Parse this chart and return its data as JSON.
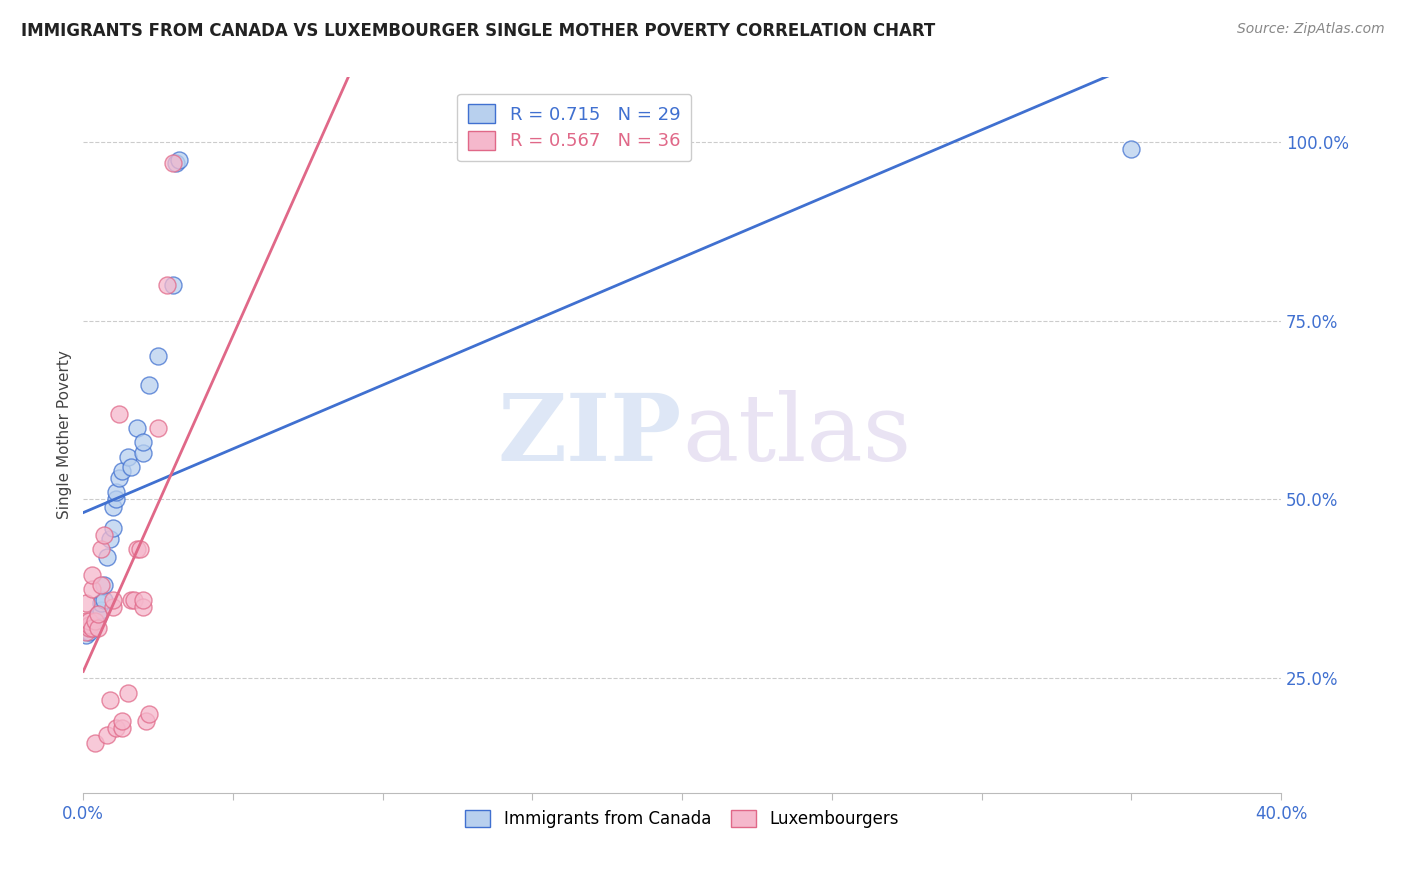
{
  "title": "IMMIGRANTS FROM CANADA VS LUXEMBOURGER SINGLE MOTHER POVERTY CORRELATION CHART",
  "source": "Source: ZipAtlas.com",
  "ylabel": "Single Mother Poverty",
  "legend_blue": "R = 0.715   N = 29",
  "legend_pink": "R = 0.567   N = 36",
  "watermark_zip": "ZIP",
  "watermark_atlas": "atlas",
  "blue_color": "#b8d0ee",
  "pink_color": "#f5b8cc",
  "blue_line_color": "#4070d0",
  "pink_line_color": "#e06888",
  "blue_scatter": [
    [
      0.001,
      0.31
    ],
    [
      0.002,
      0.315
    ],
    [
      0.003,
      0.32
    ],
    [
      0.004,
      0.33
    ],
    [
      0.005,
      0.335
    ],
    [
      0.005,
      0.34
    ],
    [
      0.006,
      0.345
    ],
    [
      0.006,
      0.355
    ],
    [
      0.007,
      0.36
    ],
    [
      0.007,
      0.38
    ],
    [
      0.008,
      0.42
    ],
    [
      0.009,
      0.445
    ],
    [
      0.01,
      0.46
    ],
    [
      0.01,
      0.49
    ],
    [
      0.011,
      0.5
    ],
    [
      0.011,
      0.51
    ],
    [
      0.012,
      0.53
    ],
    [
      0.013,
      0.54
    ],
    [
      0.015,
      0.56
    ],
    [
      0.016,
      0.545
    ],
    [
      0.018,
      0.6
    ],
    [
      0.02,
      0.565
    ],
    [
      0.02,
      0.58
    ],
    [
      0.022,
      0.66
    ],
    [
      0.025,
      0.7
    ],
    [
      0.03,
      0.8
    ],
    [
      0.031,
      0.97
    ],
    [
      0.032,
      0.975
    ],
    [
      0.35,
      0.99
    ]
  ],
  "pink_scatter": [
    [
      0.001,
      0.315
    ],
    [
      0.001,
      0.33
    ],
    [
      0.001,
      0.355
    ],
    [
      0.002,
      0.32
    ],
    [
      0.002,
      0.325
    ],
    [
      0.002,
      0.33
    ],
    [
      0.003,
      0.32
    ],
    [
      0.003,
      0.375
    ],
    [
      0.003,
      0.395
    ],
    [
      0.004,
      0.16
    ],
    [
      0.004,
      0.33
    ],
    [
      0.005,
      0.32
    ],
    [
      0.005,
      0.34
    ],
    [
      0.006,
      0.38
    ],
    [
      0.006,
      0.43
    ],
    [
      0.007,
      0.45
    ],
    [
      0.008,
      0.17
    ],
    [
      0.009,
      0.22
    ],
    [
      0.01,
      0.35
    ],
    [
      0.01,
      0.36
    ],
    [
      0.011,
      0.18
    ],
    [
      0.012,
      0.62
    ],
    [
      0.013,
      0.18
    ],
    [
      0.013,
      0.19
    ],
    [
      0.015,
      0.23
    ],
    [
      0.016,
      0.36
    ],
    [
      0.017,
      0.36
    ],
    [
      0.018,
      0.43
    ],
    [
      0.019,
      0.43
    ],
    [
      0.02,
      0.35
    ],
    [
      0.02,
      0.36
    ],
    [
      0.021,
      0.19
    ],
    [
      0.022,
      0.2
    ],
    [
      0.025,
      0.6
    ],
    [
      0.028,
      0.8
    ],
    [
      0.03,
      0.97
    ]
  ],
  "xlim": [
    0.0,
    0.4
  ],
  "ylim": [
    0.09,
    1.09
  ],
  "figsize": [
    14.06,
    8.92
  ],
  "dpi": 100,
  "x_tick_positions": [
    0.0,
    0.05,
    0.1,
    0.15,
    0.2,
    0.25,
    0.3,
    0.35,
    0.4
  ],
  "y_tick_positions": [
    0.25,
    0.5,
    0.75,
    1.0
  ],
  "y_tick_labels": [
    "25.0%",
    "50.0%",
    "75.0%",
    "100.0%"
  ]
}
